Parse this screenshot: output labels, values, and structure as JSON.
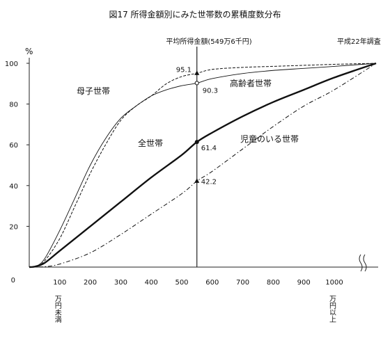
{
  "chart_data": {
    "type": "line",
    "title": "図17  所得金額別にみた世帯数の累積度数分布",
    "ylabel": "%",
    "ylim": [
      0,
      100
    ],
    "yticks": [
      0,
      20,
      40,
      60,
      80,
      100
    ],
    "xlim": [
      0,
      1000
    ],
    "xticks": [
      100,
      200,
      300,
      400,
      500,
      600,
      700,
      800,
      900,
      1000
    ],
    "x_first_note": "万円未満",
    "x_last_note": "万円以上",
    "source_note": "平成22年調査",
    "reference_line": {
      "x": 549.6,
      "label": "平均所得金額(549万6千円)"
    },
    "grid": false,
    "series": [
      {
        "name": "全世帯",
        "style": "thick",
        "x": [
          0,
          20,
          50,
          100,
          200,
          300,
          400,
          500,
          549.6,
          600,
          700,
          800,
          900,
          1000,
          1120
        ],
        "y": [
          0,
          0.3,
          2,
          8,
          20,
          32,
          44,
          55,
          61.4,
          66,
          74,
          81,
          87,
          93,
          100
        ]
      },
      {
        "name": "高齢者世帯",
        "style": "thin",
        "x": [
          0,
          20,
          50,
          100,
          150,
          200,
          250,
          300,
          350,
          400,
          450,
          500,
          549.6,
          600,
          700,
          800,
          900,
          1000,
          1120
        ],
        "y": [
          0,
          0.3,
          4,
          18,
          34,
          50,
          63,
          73,
          79,
          84,
          87,
          89,
          90.3,
          92.5,
          95,
          96.5,
          97.5,
          98.5,
          100
        ]
      },
      {
        "name": "母子世帯",
        "style": "dashed",
        "x": [
          0,
          20,
          50,
          100,
          150,
          200,
          250,
          300,
          350,
          400,
          450,
          500,
          549.6,
          600,
          700,
          800,
          900,
          1000,
          1120
        ],
        "y": [
          0,
          0.3,
          3,
          14,
          30,
          46,
          60,
          72,
          79,
          84,
          90,
          93.5,
          95.1,
          97,
          98,
          98.5,
          99,
          99.5,
          100
        ]
      },
      {
        "name": "児童のいる世帯",
        "style": "dashdot",
        "x": [
          0,
          50,
          100,
          200,
          300,
          400,
          500,
          549.6,
          600,
          700,
          800,
          900,
          1000,
          1120
        ],
        "y": [
          0,
          0.2,
          1.5,
          7,
          16,
          26,
          36,
          42.2,
          47,
          58,
          69,
          79,
          87,
          100
        ]
      }
    ],
    "annotations": [
      {
        "series": "母子世帯",
        "x": 549.6,
        "y": 95.1,
        "text": "95.1",
        "marker": "triangle"
      },
      {
        "series": "高齢者世帯",
        "x": 549.6,
        "y": 90.3,
        "text": "90.3",
        "marker": "circle"
      },
      {
        "series": "全世帯",
        "x": 549.6,
        "y": 61.4,
        "text": "61.4",
        "marker": "dot"
      },
      {
        "series": "児童のいる世帯",
        "x": 549.6,
        "y": 42.2,
        "text": "42.2",
        "marker": "triangle"
      }
    ]
  }
}
